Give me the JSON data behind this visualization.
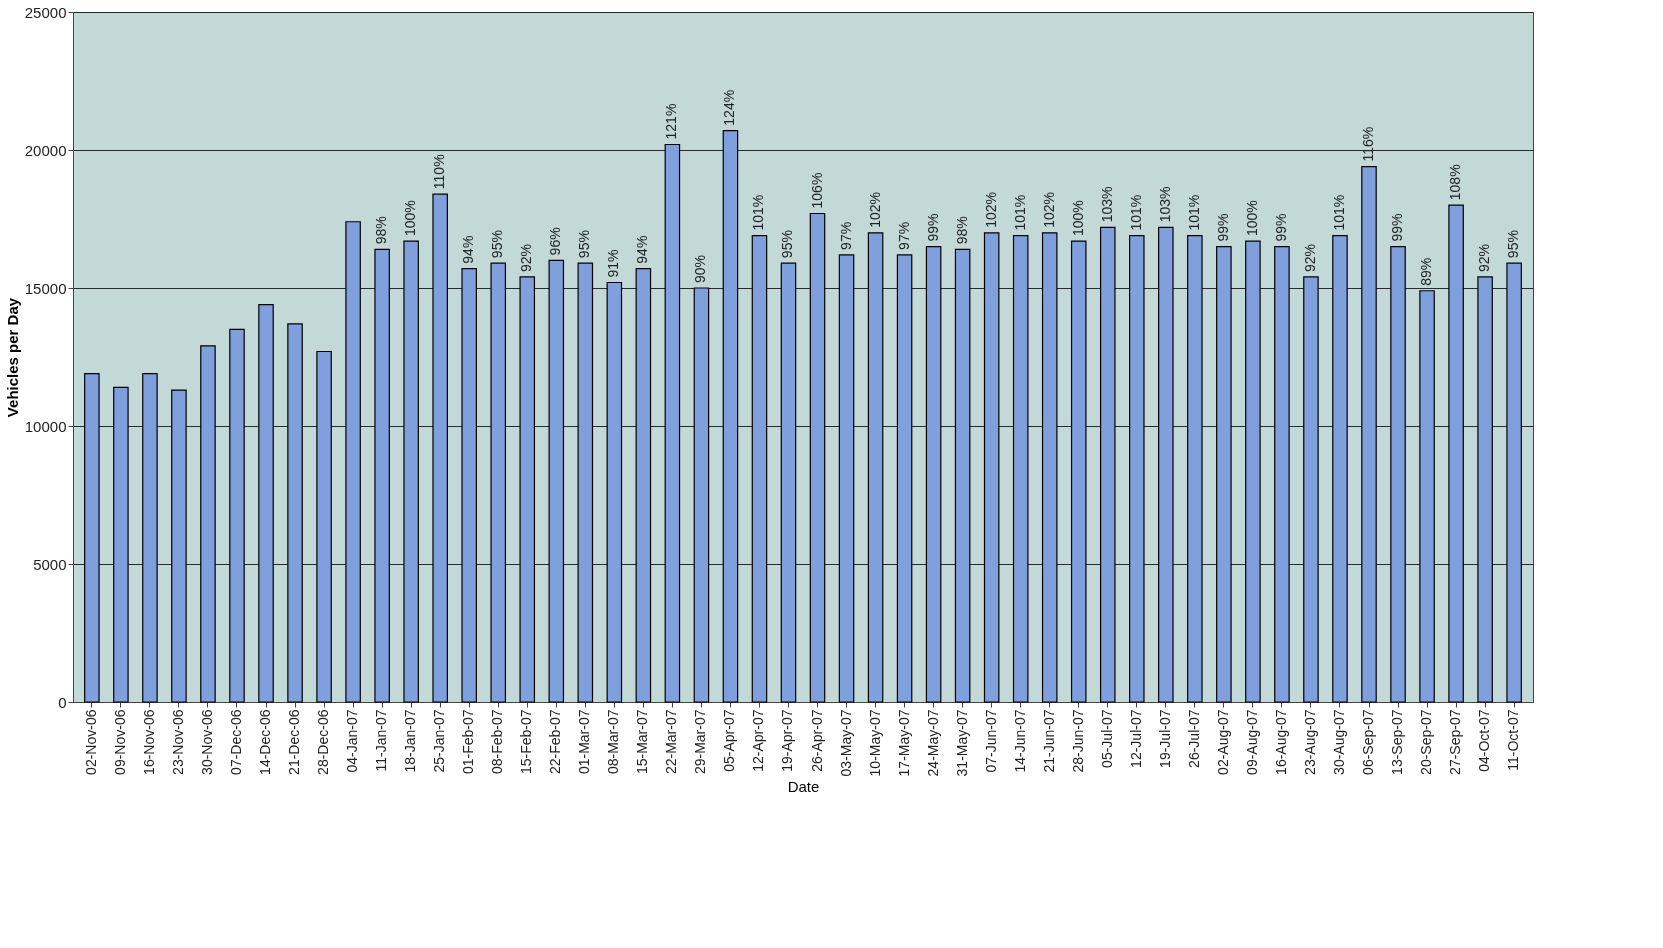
{
  "chart_data": {
    "type": "bar",
    "xlabel": "Date",
    "ylabel": "Vehicles per Day",
    "categories": [
      "02-Nov-06",
      "09-Nov-06",
      "16-Nov-06",
      "23-Nov-06",
      "30-Nov-06",
      "07-Dec-06",
      "14-Dec-06",
      "21-Dec-06",
      "28-Dec-06",
      "04-Jan-07",
      "11-Jan-07",
      "18-Jan-07",
      "25-Jan-07",
      "01-Feb-07",
      "08-Feb-07",
      "15-Feb-07",
      "22-Feb-07",
      "01-Mar-07",
      "08-Mar-07",
      "15-Mar-07",
      "22-Mar-07",
      "29-Mar-07",
      "05-Apr-07",
      "12-Apr-07",
      "19-Apr-07",
      "26-Apr-07",
      "03-May-07",
      "10-May-07",
      "17-May-07",
      "24-May-07",
      "31-May-07",
      "07-Jun-07",
      "14-Jun-07",
      "21-Jun-07",
      "28-Jun-07",
      "05-Jul-07",
      "12-Jul-07",
      "19-Jul-07",
      "26-Jul-07",
      "02-Aug-07",
      "09-Aug-07",
      "16-Aug-07",
      "23-Aug-07",
      "30-Aug-07",
      "06-Sep-07",
      "13-Sep-07",
      "20-Sep-07",
      "27-Sep-07",
      "04-Oct-07",
      "11-Oct-07"
    ],
    "values": [
      11900,
      11400,
      11900,
      11300,
      12900,
      13500,
      14400,
      13700,
      12700,
      17400,
      16400,
      16700,
      18400,
      15700,
      15900,
      15400,
      16000,
      15900,
      15200,
      15700,
      20200,
      15000,
      20700,
      16900,
      15900,
      17700,
      16200,
      17000,
      16200,
      16500,
      16400,
      17000,
      16900,
      17000,
      16700,
      17200,
      16900,
      17200,
      16900,
      16500,
      16700,
      16500,
      15400,
      16900,
      19400,
      16500,
      14900,
      18000,
      15400,
      15900
    ],
    "annotations": [
      {
        "text": "98%",
        "x": "11-Jan-07",
        "y": 16400
      },
      {
        "text": "100%",
        "x": "18-Jan-07",
        "y": 16700
      },
      {
        "text": "110%",
        "x": "25-Jan-07",
        "y": 18400
      },
      {
        "text": "94%",
        "x": "01-Feb-07",
        "y": 15700
      },
      {
        "text": "95%",
        "x": "08-Feb-07",
        "y": 15900
      },
      {
        "text": "92%",
        "x": "15-Feb-07",
        "y": 15400
      },
      {
        "text": "96%",
        "x": "22-Feb-07",
        "y": 16000
      },
      {
        "text": "95%",
        "x": "01-Mar-07",
        "y": 15900
      },
      {
        "text": "91%",
        "x": "08-Mar-07",
        "y": 15200
      },
      {
        "text": "94%",
        "x": "15-Mar-07",
        "y": 15700
      },
      {
        "text": "121%",
        "x": "22-Mar-07",
        "y": 20200
      },
      {
        "text": "90%",
        "x": "29-Mar-07",
        "y": 15000
      },
      {
        "text": "124%",
        "x": "05-Apr-07",
        "y": 20700
      },
      {
        "text": "101%",
        "x": "12-Apr-07",
        "y": 16900
      },
      {
        "text": "95%",
        "x": "19-Apr-07",
        "y": 15900
      },
      {
        "text": "106%",
        "x": "26-Apr-07",
        "y": 17700
      },
      {
        "text": "97%",
        "x": "03-May-07",
        "y": 16200
      },
      {
        "text": "102%",
        "x": "10-May-07",
        "y": 17000
      },
      {
        "text": "97%",
        "x": "17-May-07",
        "y": 16200
      },
      {
        "text": "99%",
        "x": "24-May-07",
        "y": 16500
      },
      {
        "text": "98%",
        "x": "31-May-07",
        "y": 16400
      },
      {
        "text": "102%",
        "x": "07-Jun-07",
        "y": 17000
      },
      {
        "text": "101%",
        "x": "14-Jun-07",
        "y": 16900
      },
      {
        "text": "102%",
        "x": "21-Jun-07",
        "y": 17000
      },
      {
        "text": "100%",
        "x": "28-Jun-07",
        "y": 16700
      },
      {
        "text": "103%",
        "x": "05-Jul-07",
        "y": 17200
      },
      {
        "text": "101%",
        "x": "12-Jul-07",
        "y": 16900
      },
      {
        "text": "103%",
        "x": "19-Jul-07",
        "y": 17200
      },
      {
        "text": "101%",
        "x": "26-Jul-07",
        "y": 16900
      },
      {
        "text": "99%",
        "x": "02-Aug-07",
        "y": 16500
      },
      {
        "text": "100%",
        "x": "09-Aug-07",
        "y": 16700
      },
      {
        "text": "99%",
        "x": "16-Aug-07",
        "y": 16500
      },
      {
        "text": "92%",
        "x": "23-Aug-07",
        "y": 15400
      },
      {
        "text": "101%",
        "x": "30-Aug-07",
        "y": 16900
      },
      {
        "text": "116%",
        "x": "06-Sep-07",
        "y": 19400
      },
      {
        "text": "99%",
        "x": "13-Sep-07",
        "y": 16500
      },
      {
        "text": "89%",
        "x": "20-Sep-07",
        "y": 14900
      },
      {
        "text": "108%",
        "x": "27-Sep-07",
        "y": 18000
      },
      {
        "text": "92%",
        "x": "04-Oct-07",
        "y": 15400
      },
      {
        "text": "95%",
        "x": "11-Oct-07",
        "y": 15900
      }
    ],
    "color": "#7f9fdd",
    "ylim": [
      0,
      25000
    ],
    "yticks": [
      0,
      5000,
      10000,
      15000,
      20000,
      25000
    ],
    "grid": "y"
  }
}
